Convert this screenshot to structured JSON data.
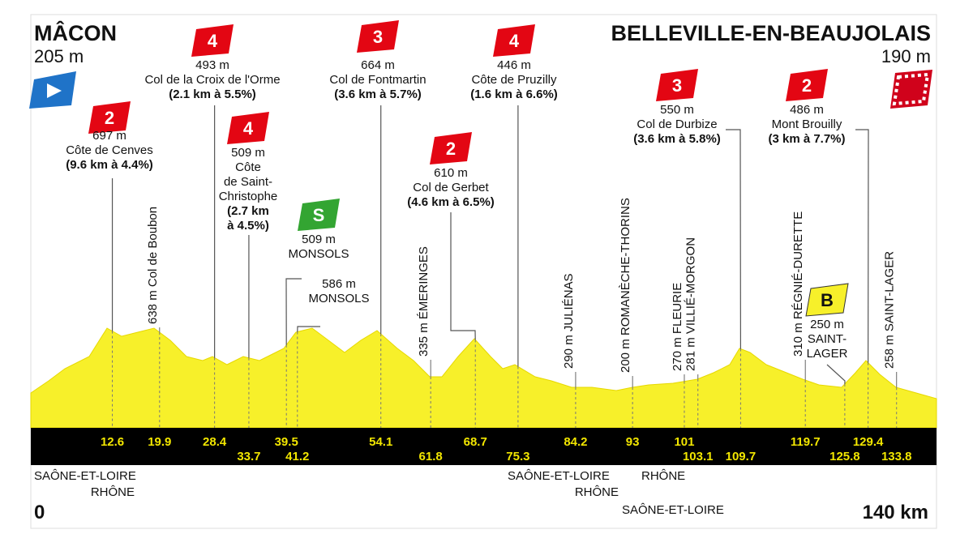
{
  "start": {
    "name": "MÂCON",
    "altitude": "205 m"
  },
  "finish": {
    "name": "BELLEVILLE-EN-BEAUJOLAIS",
    "altitude": "190 m"
  },
  "distance": {
    "start": "0",
    "end": "140 km"
  },
  "callouts": [
    {
      "badge": "2",
      "altitude": "697 m",
      "name": [
        "Côte de Cenves"
      ],
      "detail": [
        "(9.6 km à 4.4%)"
      ]
    },
    {
      "badge": "4",
      "altitude": "493 m",
      "name": [
        "Col de la Croix de l'Orme"
      ],
      "detail": [
        "(2.1 km à 5.5%)"
      ]
    },
    {
      "badge": "4",
      "altitude": "509 m",
      "name": [
        "Côte",
        "de Saint-",
        "Christophe"
      ],
      "detail": [
        "(2.7 km",
        "à 4.5%)"
      ]
    },
    {
      "badge": "S",
      "altitude": "509 m",
      "name": [
        "MONSOLS"
      ]
    },
    {
      "altitude": "586 m",
      "name": [
        "MONSOLS"
      ]
    },
    {
      "badge": "3",
      "altitude": "664 m",
      "name": [
        "Col de Fontmartin"
      ],
      "detail": [
        "(3.6 km à 5.7%)"
      ]
    },
    {
      "badge": "2",
      "altitude": "610 m",
      "name": [
        "Col de Gerbet"
      ],
      "detail": [
        "(4.6 km à 6.5%)"
      ]
    },
    {
      "badge": "4",
      "altitude": "446 m",
      "name": [
        "Côte de Pruzilly"
      ],
      "detail": [
        "(1.6 km à 6.6%)"
      ]
    },
    {
      "badge": "3",
      "altitude": "550 m",
      "name": [
        "Col de Durbize"
      ],
      "detail": [
        "(3.6 km à 5.8%)"
      ]
    },
    {
      "badge": "2",
      "altitude": "486 m",
      "name": [
        "Mont Brouilly"
      ],
      "detail": [
        "(3 km à 7.7%)"
      ]
    },
    {
      "badge": "B",
      "altitude": "250 m",
      "name": [
        "SAINT-",
        "LAGER"
      ]
    }
  ],
  "vertical_labels": [
    "638 m Col de Boubon",
    "335 m ÉMERINGES",
    "290 m JULIÉNAS",
    "200 m ROMANÈCHE-THORINS",
    "270 m FLEURIE",
    "281 m VILLIÉ-MORGON",
    "310 m RÉGNIÉ-DURETTE",
    "258 m SAINT-LAGER"
  ],
  "km_markers": [
    12.6,
    19.9,
    28.4,
    33.7,
    39.5,
    41.2,
    54.1,
    61.8,
    68.7,
    75.3,
    84.2,
    93,
    101,
    103.1,
    109.7,
    119.7,
    125.8,
    129.4,
    133.8
  ],
  "departments": [
    "SAÔNE-ET-LOIRE",
    "RHÔNE",
    "SAÔNE-ET-LOIRE",
    "RHÔNE",
    "RHÔNE",
    "SAÔNE-ET-LOIRE"
  ]
}
